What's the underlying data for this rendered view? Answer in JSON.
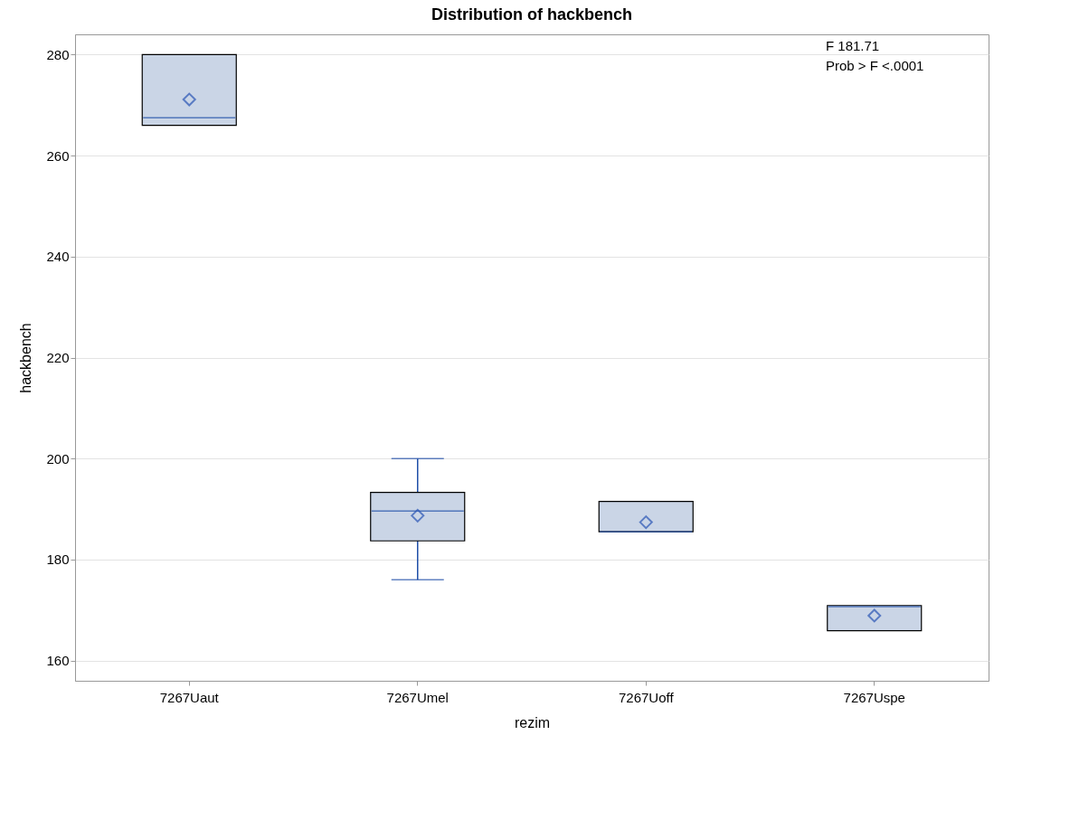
{
  "chart_data": {
    "type": "box",
    "title": "Distribution of hackbench",
    "xlabel": "rezim",
    "ylabel": "hackbench",
    "categories": [
      "7267Uaut",
      "7267Umel",
      "7267Uoff",
      "7267Uspe"
    ],
    "boxes": [
      {
        "low": 266,
        "q1": 266,
        "median": 267.5,
        "q3": 280,
        "high": 280,
        "mean": 271.1
      },
      {
        "low": 176,
        "q1": 183.7,
        "median": 189.6,
        "q3": 193.3,
        "high": 200,
        "mean": 188.7
      },
      {
        "low": 185.5,
        "q1": 185.5,
        "median": 185.5,
        "q3": 191.5,
        "high": 191.5,
        "mean": 187.4
      },
      {
        "low": 165.9,
        "q1": 165.9,
        "median": 170.7,
        "q3": 170.9,
        "high": 170.9,
        "mean": 168.9
      }
    ],
    "color": "#cad5e6",
    "ylim": [
      156,
      284
    ],
    "yticks": [
      160,
      180,
      200,
      220,
      240,
      260,
      280
    ],
    "grid": "y",
    "marker": "diamond",
    "annotations": [
      "F          181.71",
      "Prob > F   <.0001"
    ]
  }
}
